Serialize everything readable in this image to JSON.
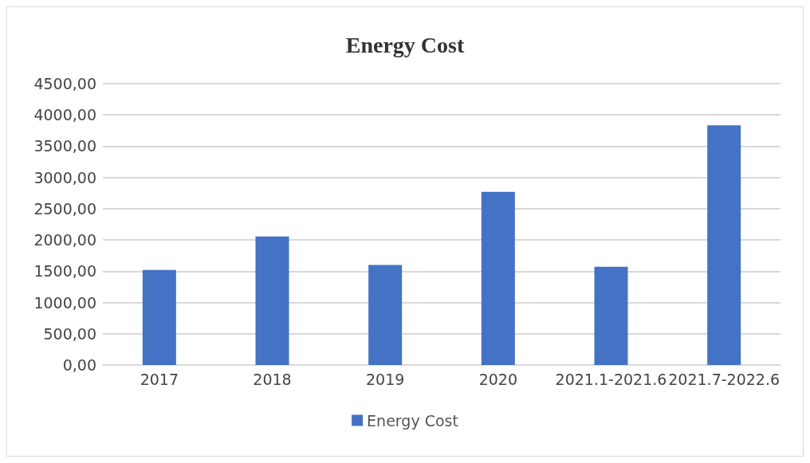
{
  "chart_data": {
    "type": "bar",
    "title": "Energy Cost",
    "categories": [
      "2017",
      "2018",
      "2019",
      "2020",
      "2021.1-2021.6",
      "2021.7-2022.6"
    ],
    "series": [
      {
        "name": "Energy Cost",
        "color": "#4472c4",
        "values": [
          1520,
          2055,
          1600,
          2770,
          1570,
          3835
        ]
      }
    ],
    "ylim": [
      0,
      4500
    ],
    "yticks": [
      {
        "value": 0,
        "label": "0,00"
      },
      {
        "value": 500,
        "label": "500,00"
      },
      {
        "value": 1000,
        "label": "1000,00"
      },
      {
        "value": 1500,
        "label": "1500,00"
      },
      {
        "value": 2000,
        "label": "2000,00"
      },
      {
        "value": 2500,
        "label": "2500,00"
      },
      {
        "value": 3000,
        "label": "3000,00"
      },
      {
        "value": 3500,
        "label": "3500,00"
      },
      {
        "value": 4000,
        "label": "4000,00"
      },
      {
        "value": 4500,
        "label": "4500,00"
      }
    ],
    "grid": "y",
    "legend": "bottom"
  }
}
